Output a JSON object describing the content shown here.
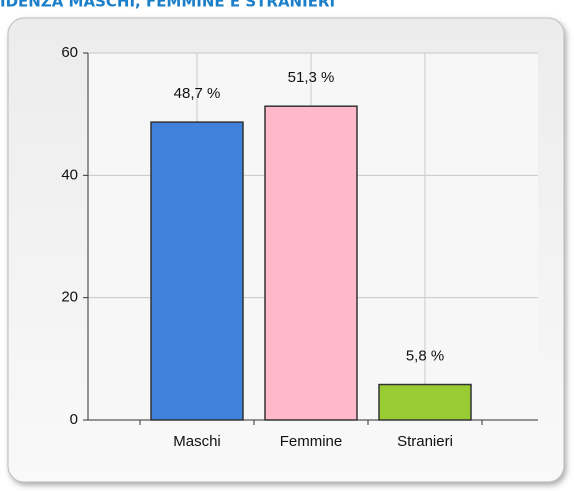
{
  "chart_data": {
    "type": "bar",
    "title": "IDENZA MASCHI, FEMMINE E STRANIERI",
    "categories": [
      "Maschi",
      "Femmine",
      "Stranieri"
    ],
    "values": [
      48.7,
      51.3,
      5.8
    ],
    "value_labels": [
      "48,7 %",
      "51,3 %",
      "5,8 %"
    ],
    "colors": [
      "#3f82dc",
      "#ffb9cb",
      "#99cc33"
    ],
    "ylim": [
      0,
      60
    ],
    "yticks": [
      0,
      20,
      40,
      60
    ],
    "grid": true
  }
}
